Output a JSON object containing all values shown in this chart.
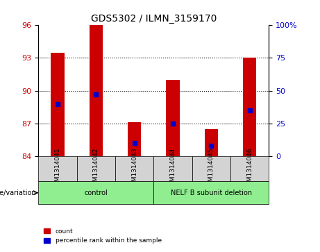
{
  "title": "GDS5302 / ILMN_3159170",
  "samples": [
    "GSM1314041",
    "GSM1314042",
    "GSM1314043",
    "GSM1314044",
    "GSM1314045",
    "GSM1314046"
  ],
  "count_values": [
    93.5,
    96.0,
    87.1,
    91.0,
    86.5,
    93.0
  ],
  "percentile_values": [
    40,
    47,
    10,
    25,
    8,
    35
  ],
  "ymin": 84,
  "ymax": 96,
  "yticks_left": [
    84,
    87,
    90,
    93,
    96
  ],
  "yticks_right": [
    0,
    25,
    50,
    75,
    100
  ],
  "bar_color": "#cc0000",
  "dot_color": "#0000cc",
  "bar_width": 0.35,
  "groups": [
    {
      "label": "control",
      "samples": [
        0,
        1,
        2
      ],
      "color": "#90ee90"
    },
    {
      "label": "NELF B subunit deletion",
      "samples": [
        3,
        4,
        5
      ],
      "color": "#90ee90"
    }
  ],
  "group_label_prefix": "genotype/variation",
  "bg_color": "#d3d3d3",
  "plot_bg": "#ffffff",
  "dotted_line_color": "#555555",
  "legend_count_label": "count",
  "legend_percentile_label": "percentile rank within the sample"
}
